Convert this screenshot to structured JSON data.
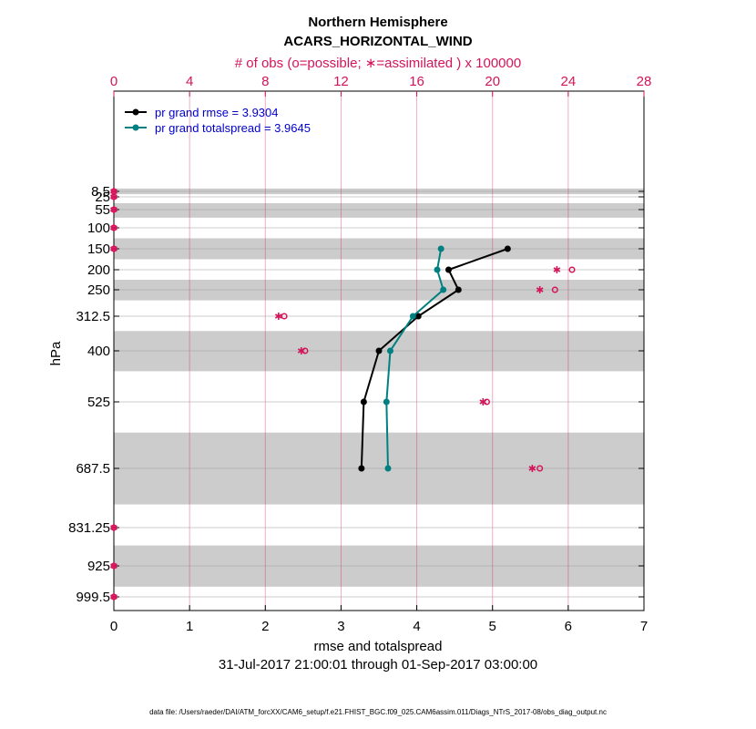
{
  "chart_data": {
    "type": "line",
    "title": "Northern Hemisphere",
    "subtitle": "ACARS_HORIZONTAL_WIND",
    "top_axis_label": "# of obs (o=possible; ∗=assimilated ) x 100000",
    "xlabel": "rmse and totalspread",
    "ylabel": "hPa",
    "date_range": "31-Jul-2017 21:00:01 through 01-Sep-2017 03:00:00",
    "footer": "data file: /Users/raeder/DAI/ATM_forcXX/CAM6_setup/f.e21.FHIST_BGC.f09_025.CAM6assim.011/Diags_NTrS_2017-08/obs_diag_output.nc",
    "xlim": [
      0,
      7
    ],
    "x_ticks": [
      "0",
      "1",
      "2",
      "3",
      "4",
      "5",
      "6",
      "7"
    ],
    "top_xlim": [
      0,
      28
    ],
    "top_ticks": [
      "0",
      "4",
      "8",
      "12",
      "16",
      "20",
      "24",
      "28"
    ],
    "y_ticks": [
      "8.5",
      "25",
      "55",
      "100",
      "150",
      "200",
      "250",
      "312.5",
      "400",
      "525",
      "687.5",
      "831.25",
      "925",
      "999.5"
    ],
    "levels": [
      8.5,
      25,
      55,
      100,
      150,
      200,
      250,
      312.5,
      400,
      525,
      687.5,
      831.25,
      925,
      999.5
    ],
    "shaded_bands_hPa": [
      [
        0,
        17
      ],
      [
        40,
        75
      ],
      [
        125,
        175
      ],
      [
        225,
        275
      ],
      [
        350,
        450
      ],
      [
        600,
        775
      ],
      [
        875,
        975
      ]
    ],
    "series": [
      {
        "name": "pr grand rmse",
        "legend": "pr grand rmse = 3.9304",
        "color": "#000000",
        "points": [
          [
            5.2,
            150
          ],
          [
            4.42,
            200
          ],
          [
            4.55,
            250
          ],
          [
            4.02,
            312.5
          ],
          [
            3.5,
            400
          ],
          [
            3.3,
            525
          ],
          [
            3.27,
            687.5
          ]
        ]
      },
      {
        "name": "pr grand totalspread",
        "legend": "pr grand totalspread = 3.9645",
        "color": "#008080",
        "points": [
          [
            4.32,
            150
          ],
          [
            4.27,
            200
          ],
          [
            4.35,
            250
          ],
          [
            3.95,
            312.5
          ],
          [
            3.65,
            400
          ],
          [
            3.6,
            525
          ],
          [
            3.62,
            687.5
          ]
        ]
      }
    ],
    "obs_possible": [
      [
        0,
        8.5
      ],
      [
        0,
        25
      ],
      [
        0,
        55
      ],
      [
        0,
        100
      ],
      [
        0,
        150
      ],
      [
        24.2,
        200
      ],
      [
        23.3,
        250
      ],
      [
        9.0,
        312.5
      ],
      [
        10.1,
        400
      ],
      [
        19.7,
        525
      ],
      [
        22.5,
        687.5
      ],
      [
        0,
        831.25
      ],
      [
        0,
        925
      ],
      [
        0,
        999.5
      ]
    ],
    "obs_assimilated": [
      [
        0,
        8.5
      ],
      [
        0,
        25
      ],
      [
        0,
        55
      ],
      [
        0,
        100
      ],
      [
        0,
        150
      ],
      [
        23.4,
        200
      ],
      [
        22.5,
        250
      ],
      [
        8.7,
        312.5
      ],
      [
        9.9,
        400
      ],
      [
        19.5,
        525
      ],
      [
        22.1,
        687.5
      ],
      [
        0,
        831.25
      ],
      [
        0,
        925
      ],
      [
        0,
        999.5
      ]
    ],
    "colors": {
      "rmse": "#000000",
      "spread": "#008080",
      "obs": "#d4145a",
      "legend_text": "#0000cc",
      "band": "#cccccc"
    }
  }
}
